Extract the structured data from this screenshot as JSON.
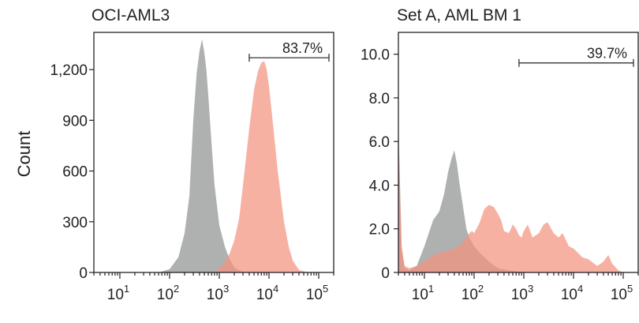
{
  "chart_data": [
    {
      "type": "area",
      "title": "OCI-AML3",
      "ylabel": "Count",
      "xlabel": "",
      "x_scale": "log",
      "xlim": [
        3,
        200000
      ],
      "ylim": [
        0,
        1420
      ],
      "yticks": [
        0,
        300,
        600,
        900,
        1200
      ],
      "ytick_labels": [
        "0",
        "300",
        "600",
        "900",
        "1,200"
      ],
      "xticks": [
        10,
        100,
        1000,
        10000,
        100000
      ],
      "xtick_labels": [
        "10",
        "10",
        "10",
        "10",
        "10"
      ],
      "xtick_exponents": [
        "1",
        "2",
        "3",
        "4",
        "5"
      ],
      "gate": {
        "x": [
          4000,
          200000
        ],
        "y": 1270,
        "label": "83.7%"
      },
      "series": [
        {
          "color": "#a8aaaa",
          "x": [
            60,
            100,
            150,
            200,
            250,
            300,
            350,
            400,
            450,
            500,
            550,
            600,
            700,
            800,
            1000,
            1300,
            1600,
            2000,
            3000
          ],
          "y": [
            0,
            20,
            90,
            230,
            450,
            900,
            1180,
            1310,
            1380,
            1300,
            1200,
            1050,
            760,
            520,
            280,
            150,
            80,
            30,
            0
          ]
        },
        {
          "color": "#f2937f",
          "x": [
            800,
            1200,
            1600,
            2000,
            2500,
            3000,
            4000,
            5000,
            6000,
            7000,
            8000,
            9000,
            10000,
            12000,
            15000,
            20000,
            25000,
            30000,
            40000,
            60000
          ],
          "y": [
            0,
            50,
            110,
            190,
            320,
            520,
            850,
            1080,
            1190,
            1240,
            1250,
            1200,
            1100,
            880,
            600,
            300,
            150,
            70,
            15,
            0
          ]
        }
      ]
    },
    {
      "type": "area",
      "title": "Set A, AML BM 1",
      "ylabel": "",
      "xlabel": "",
      "x_scale": "log",
      "xlim": [
        3,
        200000
      ],
      "ylim": [
        0,
        11
      ],
      "yticks": [
        0,
        2,
        4,
        6,
        8,
        10
      ],
      "ytick_labels": [
        "0",
        "2.0",
        "4.0",
        "6.0",
        "8.0",
        "10.0"
      ],
      "xticks": [
        10,
        100,
        1000,
        10000,
        100000
      ],
      "xtick_labels": [
        "10",
        "10",
        "10",
        "10",
        "10"
      ],
      "xtick_exponents": [
        "1",
        "2",
        "3",
        "4",
        "5"
      ],
      "gate": {
        "x": [
          800,
          200000
        ],
        "y": 9.6,
        "label": "39.7%"
      },
      "series": [
        {
          "color": "#a8aaaa",
          "x": [
            3,
            3.5,
            4,
            5,
            7,
            10,
            15,
            20,
            25,
            30,
            35,
            40,
            45,
            50,
            60,
            70,
            80,
            100,
            130,
            200,
            300,
            500,
            1000
          ],
          "y": [
            7.0,
            1.0,
            0.2,
            0.1,
            0.3,
            1.2,
            2.4,
            2.8,
            3.6,
            4.6,
            5.2,
            5.6,
            5.0,
            4.2,
            3.0,
            2.0,
            1.6,
            1.2,
            0.9,
            0.5,
            0.2,
            0.1,
            0
          ]
        },
        {
          "color": "#f2937f",
          "x": [
            3,
            3.5,
            4,
            5,
            7,
            10,
            15,
            20,
            30,
            40,
            50,
            60,
            70,
            80,
            90,
            100,
            130,
            160,
            200,
            250,
            300,
            350,
            400,
            500,
            600,
            700,
            800,
            900,
            1000,
            1200,
            1500,
            2000,
            2500,
            3000,
            4000,
            5000,
            6000,
            7000,
            8000,
            10000,
            15000,
            20000,
            30000,
            40000,
            50000,
            60000,
            80000,
            100000
          ],
          "y": [
            6.0,
            1.2,
            0.3,
            0.2,
            0.3,
            0.5,
            0.8,
            0.9,
            1.0,
            1.1,
            1.2,
            1.4,
            1.6,
            1.8,
            1.9,
            1.8,
            2.3,
            2.9,
            3.1,
            3.0,
            2.7,
            2.4,
            1.9,
            1.8,
            2.2,
            2.0,
            1.7,
            1.6,
            1.9,
            2.2,
            1.6,
            1.8,
            2.2,
            2.3,
            1.8,
            1.6,
            1.8,
            1.5,
            1.2,
            1.1,
            0.7,
            0.6,
            0.3,
            0.5,
            0.8,
            0.4,
            0.1,
            0
          ]
        }
      ]
    }
  ]
}
